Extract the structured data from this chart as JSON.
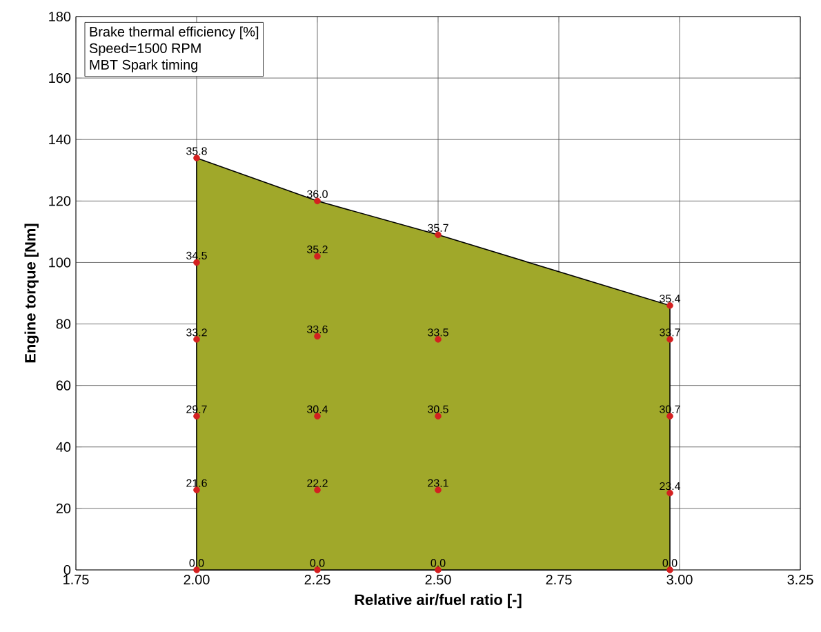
{
  "chart_data": {
    "type": "scatter",
    "xlabel": "Relative air/fuel ratio [-]",
    "ylabel": "Engine torque [Nm]",
    "annotations": [
      "Brake thermal efficiency [%]",
      "Speed=1500 RPM",
      "MBT Spark timing",
      {
        "text": "35.8",
        "x": 2.0,
        "y": 134
      },
      {
        "text": "34.5",
        "x": 2.0,
        "y": 100
      },
      {
        "text": "33.2",
        "x": 2.0,
        "y": 75
      },
      {
        "text": "29.7",
        "x": 2.0,
        "y": 50
      },
      {
        "text": "21.6",
        "x": 2.0,
        "y": 26
      },
      {
        "text": "0.0",
        "x": 2.0,
        "y": 0
      },
      {
        "text": "36.0",
        "x": 2.25,
        "y": 120
      },
      {
        "text": "35.2",
        "x": 2.25,
        "y": 102
      },
      {
        "text": "33.6",
        "x": 2.25,
        "y": 76
      },
      {
        "text": "30.4",
        "x": 2.25,
        "y": 50
      },
      {
        "text": "22.2",
        "x": 2.25,
        "y": 26
      },
      {
        "text": "0.0",
        "x": 2.25,
        "y": 0
      },
      {
        "text": "35.7",
        "x": 2.5,
        "y": 109
      },
      {
        "text": "33.5",
        "x": 2.5,
        "y": 75
      },
      {
        "text": "30.5",
        "x": 2.5,
        "y": 50
      },
      {
        "text": "23.1",
        "x": 2.5,
        "y": 26
      },
      {
        "text": "0.0",
        "x": 2.5,
        "y": 0
      },
      {
        "text": "35.4",
        "x": 2.98,
        "y": 86
      },
      {
        "text": "33.7",
        "x": 2.98,
        "y": 75
      },
      {
        "text": "30.7",
        "x": 2.98,
        "y": 50
      },
      {
        "text": "23.4",
        "x": 2.98,
        "y": 25
      },
      {
        "text": "0.0",
        "x": 2.98,
        "y": 0
      }
    ],
    "xlim": [
      1.75,
      3.25
    ],
    "ylim": [
      0,
      180
    ],
    "xticks": [
      {
        "value": 1.75,
        "label": "1.75"
      },
      {
        "value": 2,
        "label": "2.00"
      },
      {
        "value": 2.25,
        "label": "2.25"
      },
      {
        "value": 2.5,
        "label": "2.50"
      },
      {
        "value": 2.75,
        "label": "2.75"
      },
      {
        "value": 3,
        "label": "3.00"
      },
      {
        "value": 3.25,
        "label": "3.25"
      }
    ],
    "yticks": [
      0,
      20,
      40,
      60,
      80,
      100,
      120,
      140,
      160,
      180
    ],
    "grid": true,
    "series": [
      {
        "type": "area",
        "color": "#a0a82a",
        "marker": "none",
        "x": [
          2.0,
          2.25,
          2.5,
          2.98
        ],
        "values": [
          134,
          120,
          109,
          86
        ]
      },
      {
        "color": "#d42020",
        "marker": "circle",
        "x": [
          2.0,
          2.0,
          2.0,
          2.0,
          2.0,
          2.0,
          2.25,
          2.25,
          2.25,
          2.25,
          2.25,
          2.25,
          2.5,
          2.5,
          2.5,
          2.5,
          2.5,
          2.98,
          2.98,
          2.98,
          2.98,
          2.98
        ],
        "values": [
          134,
          100,
          75,
          50,
          26,
          0,
          120,
          102,
          76,
          50,
          26,
          0,
          109,
          75,
          50,
          26,
          0,
          86,
          75,
          50,
          25,
          0
        ]
      }
    ]
  }
}
